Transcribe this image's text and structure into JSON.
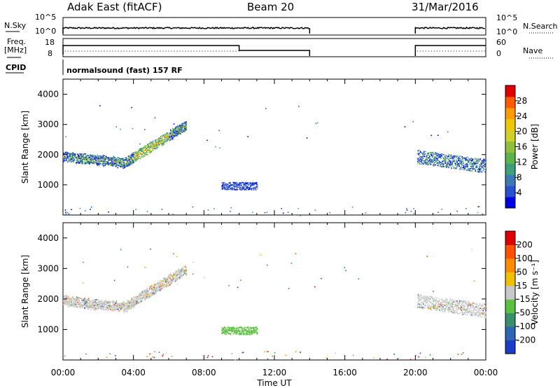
{
  "header": {
    "station": "Adak East (fitACF)",
    "beam": "Beam 20",
    "date": "31/Mar/2016"
  },
  "panels": {
    "nsky_label": "N.Sky",
    "nsky_ticks": [
      "10^5",
      "10^0"
    ],
    "nsearch_label": "N.Search",
    "nsearch_ticks": [
      "10^5",
      "10^0"
    ],
    "freq_label_top": "Freq.",
    "freq_label_bottom": "[MHz]",
    "freq_ticks": [
      "18",
      "8"
    ],
    "nave_label": "Nave",
    "nave_ticks": [
      "60",
      "0"
    ],
    "cpid_label": "CPID",
    "cpid_text": "normalsound (fast) 157 RF"
  },
  "chart_data": [
    {
      "type": "heatmap",
      "name": "power-panel",
      "ylabel": "Slant Range [km]",
      "yticks": [
        "4000",
        "3000",
        "2000",
        "1000"
      ],
      "ylim": [
        0,
        4500
      ],
      "xlim": [
        "00:00",
        "24:00"
      ],
      "colorbar_label": "Power [dB]",
      "colorbar_ticks": [
        "28",
        "24",
        "20",
        "16",
        "12",
        "8",
        "4"
      ],
      "colorbar_colors": [
        "#0000e6",
        "#2a4fd0",
        "#3b7ab4",
        "#3f9f7a",
        "#5cb34a",
        "#8fc23a",
        "#cfd12a",
        "#f0c800",
        "#ff9a00",
        "#ff5a00",
        "#e00000"
      ]
    },
    {
      "type": "heatmap",
      "name": "velocity-panel",
      "ylabel": "Slant Range [km]",
      "yticks": [
        "4000",
        "3000",
        "2000",
        "1000"
      ],
      "ylim": [
        0,
        4500
      ],
      "xlim": [
        "00:00",
        "24:00"
      ],
      "xlabel": "Time UT",
      "xticks": [
        "00:00",
        "04:00",
        "08:00",
        "12:00",
        "16:00",
        "20:00",
        "00:00"
      ],
      "colorbar_label": "Velocity [m s⁻¹]",
      "colorbar_ticks": [
        "200",
        "100",
        "50",
        "15",
        "-15",
        "-50",
        "-100",
        "-200"
      ],
      "colorbar_colors": [
        "#1a3cc8",
        "#2f66b4",
        "#3a8f6a",
        "#5cc040",
        "#c8c8c8",
        "#f0c000",
        "#ff8c00",
        "#ff5000",
        "#e00000"
      ]
    }
  ]
}
